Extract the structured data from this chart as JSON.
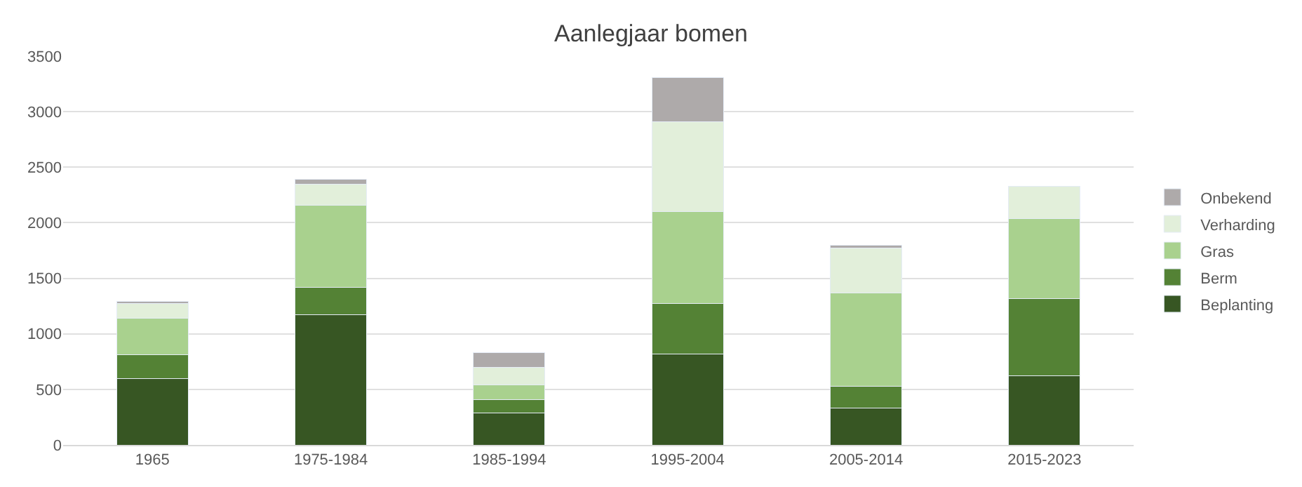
{
  "chart_data": {
    "type": "bar",
    "title": "Aanlegjaar bomen",
    "stacked": true,
    "categories": [
      "1965",
      "1975-1984",
      "1985-1994",
      "1995-2004",
      "2005-2014",
      "2015-2023"
    ],
    "series": [
      {
        "name": "Beplanting",
        "color": "#375623",
        "values": [
          600,
          1170,
          290,
          820,
          330,
          620
        ]
      },
      {
        "name": "Berm",
        "color": "#548235",
        "values": [
          210,
          250,
          120,
          450,
          200,
          700
        ]
      },
      {
        "name": "Gras",
        "color": "#a9d18e",
        "values": [
          330,
          740,
          130,
          830,
          840,
          720
        ]
      },
      {
        "name": "Verharding",
        "color": "#e2efda",
        "values": [
          130,
          190,
          160,
          810,
          400,
          290
        ]
      },
      {
        "name": "Onbekend",
        "color": "#aeaaaa",
        "values": [
          20,
          40,
          130,
          400,
          30,
          null
        ]
      }
    ],
    "ylim": [
      0,
      3500
    ],
    "yticks": [
      0,
      500,
      1000,
      1500,
      2000,
      2500,
      3000,
      3500
    ],
    "grid": "y",
    "legend": "right"
  }
}
